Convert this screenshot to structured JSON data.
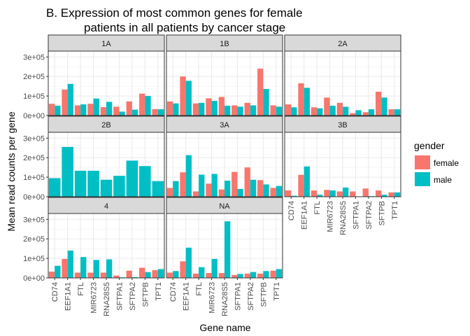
{
  "chart_data": {
    "type": "bar",
    "title_line1": "B. Expression of most common genes for female",
    "title_line2": "patients in all patients by cancer stage",
    "xlabel": "Gene name",
    "ylabel": "Mean read counts per gene",
    "ylim": [
      0,
      330000
    ],
    "y_ticks": [
      0,
      100000,
      200000,
      300000
    ],
    "y_tick_labels": [
      "0e+00",
      "1e+05",
      "2e+05",
      "3e+05"
    ],
    "categories": [
      "CD74",
      "EEF1A1",
      "FTL",
      "MIR6723",
      "RNA28S5",
      "SFTPA1",
      "SFTPA2",
      "SFTPB",
      "TPT1"
    ],
    "legend": {
      "title": "gender",
      "placement": "right",
      "entries": [
        {
          "name": "female",
          "color": "#F8766D"
        },
        {
          "name": "male",
          "color": "#00BFC4"
        }
      ]
    },
    "grid": true,
    "panels": [
      {
        "label": "1A",
        "female": [
          60000,
          133000,
          52000,
          60000,
          43000,
          45000,
          72000,
          112000,
          33000
        ],
        "male": [
          50000,
          162000,
          57000,
          87000,
          70000,
          20000,
          30000,
          100000,
          32000
        ]
      },
      {
        "label": "1B",
        "female": [
          72000,
          200000,
          62000,
          88000,
          95000,
          52000,
          65000,
          240000,
          52000
        ],
        "male": [
          62000,
          178000,
          65000,
          75000,
          50000,
          45000,
          52000,
          136000,
          45000
        ]
      },
      {
        "label": "2A",
        "female": [
          57000,
          165000,
          42000,
          92000,
          65000,
          12000,
          17000,
          122000,
          32000
        ],
        "male": [
          42000,
          142000,
          37000,
          50000,
          45000,
          27000,
          32000,
          92000,
          32000
        ]
      },
      {
        "label": "2B",
        "female": [
          null,
          null,
          null,
          null,
          null,
          null,
          null,
          null,
          null
        ],
        "male": [
          95000,
          255000,
          133000,
          133000,
          87000,
          107000,
          185000,
          157000,
          80000
        ]
      },
      {
        "label": "3A",
        "female": [
          45000,
          125000,
          27000,
          67000,
          37000,
          127000,
          150000,
          85000,
          45000
        ],
        "male": [
          80000,
          213000,
          113000,
          117000,
          82000,
          40000,
          87000,
          63000,
          55000
        ]
      },
      {
        "label": "3B",
        "female": [
          32000,
          112000,
          32000,
          35000,
          27000,
          27000,
          42000,
          32000,
          22000
        ],
        "male": [
          5000,
          155000,
          10000,
          32000,
          47000,
          2000,
          3000,
          10000,
          22000
        ]
      },
      {
        "label": "4",
        "female": [
          32000,
          97000,
          27000,
          27000,
          27000,
          12000,
          37000,
          52000,
          40000
        ],
        "male": [
          62000,
          140000,
          107000,
          92000,
          95000,
          3000,
          4000,
          30000,
          45000
        ]
      },
      {
        "label": "NA",
        "female": [
          27000,
          85000,
          22000,
          25000,
          25000,
          15000,
          22000,
          22000,
          37000
        ],
        "male": [
          35000,
          155000,
          55000,
          97000,
          290000,
          20000,
          30000,
          35000,
          45000
        ]
      }
    ]
  }
}
